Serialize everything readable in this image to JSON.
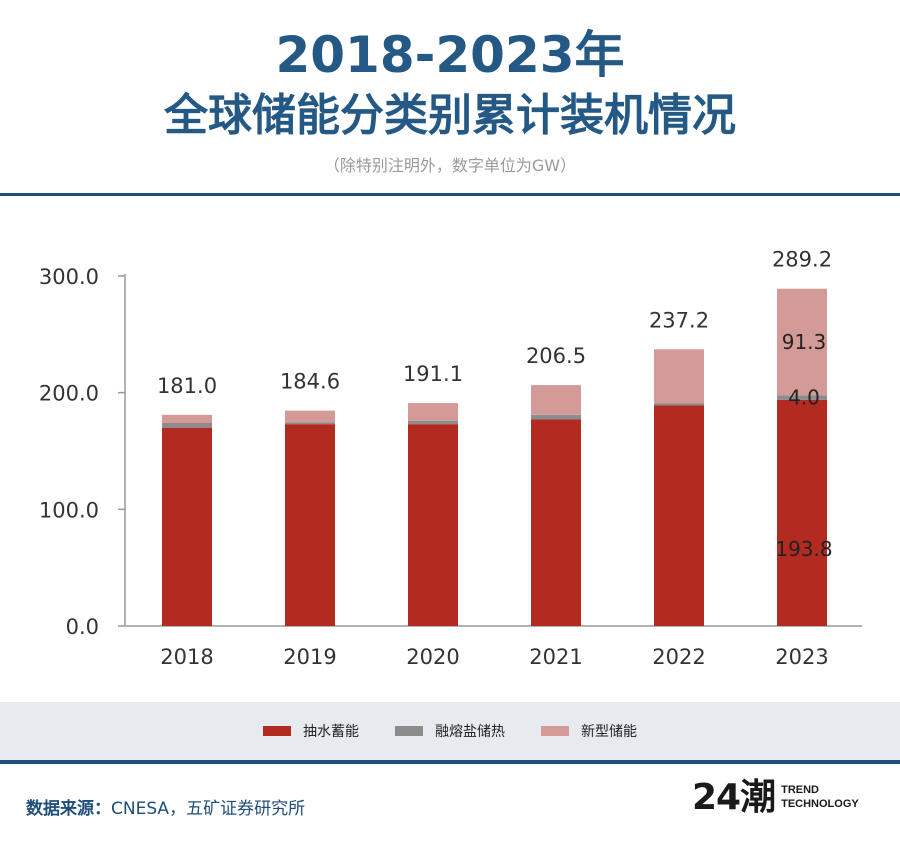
{
  "header": {
    "title_line1": "2018-2023年",
    "title_line2": "全球储能分类别累计装机情况",
    "subtitle": "（除特别注明外，数字单位为GW）"
  },
  "chart_data": {
    "type": "bar",
    "stacked": true,
    "categories": [
      "2018",
      "2019",
      "2020",
      "2021",
      "2022",
      "2023"
    ],
    "series": [
      {
        "name": "抽水蓄能",
        "color": "#b22a20",
        "values": [
          170.0,
          173.0,
          173.0,
          177.0,
          189.0,
          193.8
        ]
      },
      {
        "name": "融熔盐储热",
        "color": "#8c8c8c",
        "values": [
          4.0,
          1.5,
          3.0,
          4.0,
          2.0,
          4.0
        ]
      },
      {
        "name": "新型储能",
        "color": "#d49a98",
        "values": [
          7.0,
          10.1,
          15.1,
          25.5,
          46.2,
          91.3
        ]
      }
    ],
    "totals": [
      "181.0",
      "184.6",
      "191.1",
      "206.5",
      "237.2",
      "289.2"
    ],
    "segment_labels_2023": [
      "193.8",
      "4.0",
      "91.3"
    ],
    "yticks": [
      "0.0",
      "100.0",
      "200.0",
      "300.0"
    ],
    "ylim": [
      0,
      300
    ],
    "legend_position": "bottom"
  },
  "legend": {
    "items": [
      {
        "label": "抽水蓄能",
        "color": "#b22a20"
      },
      {
        "label": "融熔盐储热",
        "color": "#8c8c8c"
      },
      {
        "label": "新型储能",
        "color": "#d49a98"
      }
    ]
  },
  "footer": {
    "source_label": "数据来源：",
    "source_text": "CNESA，五矿证券研究所",
    "logo_mark": "24潮",
    "logo_line1": "TREND",
    "logo_line2": "TECHNOLOGY"
  }
}
